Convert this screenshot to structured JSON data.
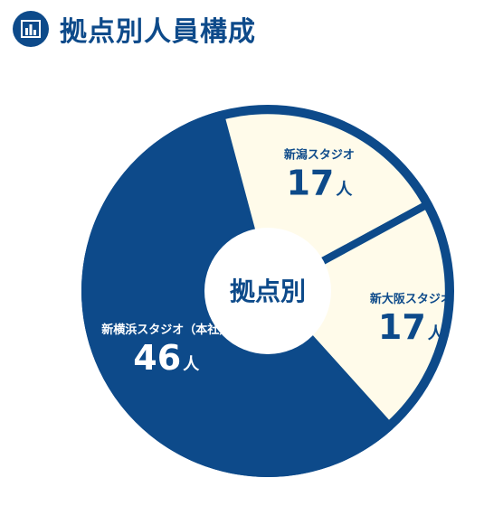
{
  "header": {
    "title": "拠点別人員構成",
    "icon": "bar-chart-icon"
  },
  "colors": {
    "primary": "#0d4a8a",
    "light": "#fffbea",
    "white": "#ffffff"
  },
  "chart_data": {
    "type": "pie",
    "title": "拠点別人員構成",
    "center_label": "拠点別",
    "unit": "人",
    "series": [
      {
        "name": "新潟スタジオ",
        "value": 17
      },
      {
        "name": "新大阪スタジオ",
        "value": 17
      },
      {
        "name": "新横浜スタジオ（本社）",
        "value": 46
      }
    ]
  }
}
